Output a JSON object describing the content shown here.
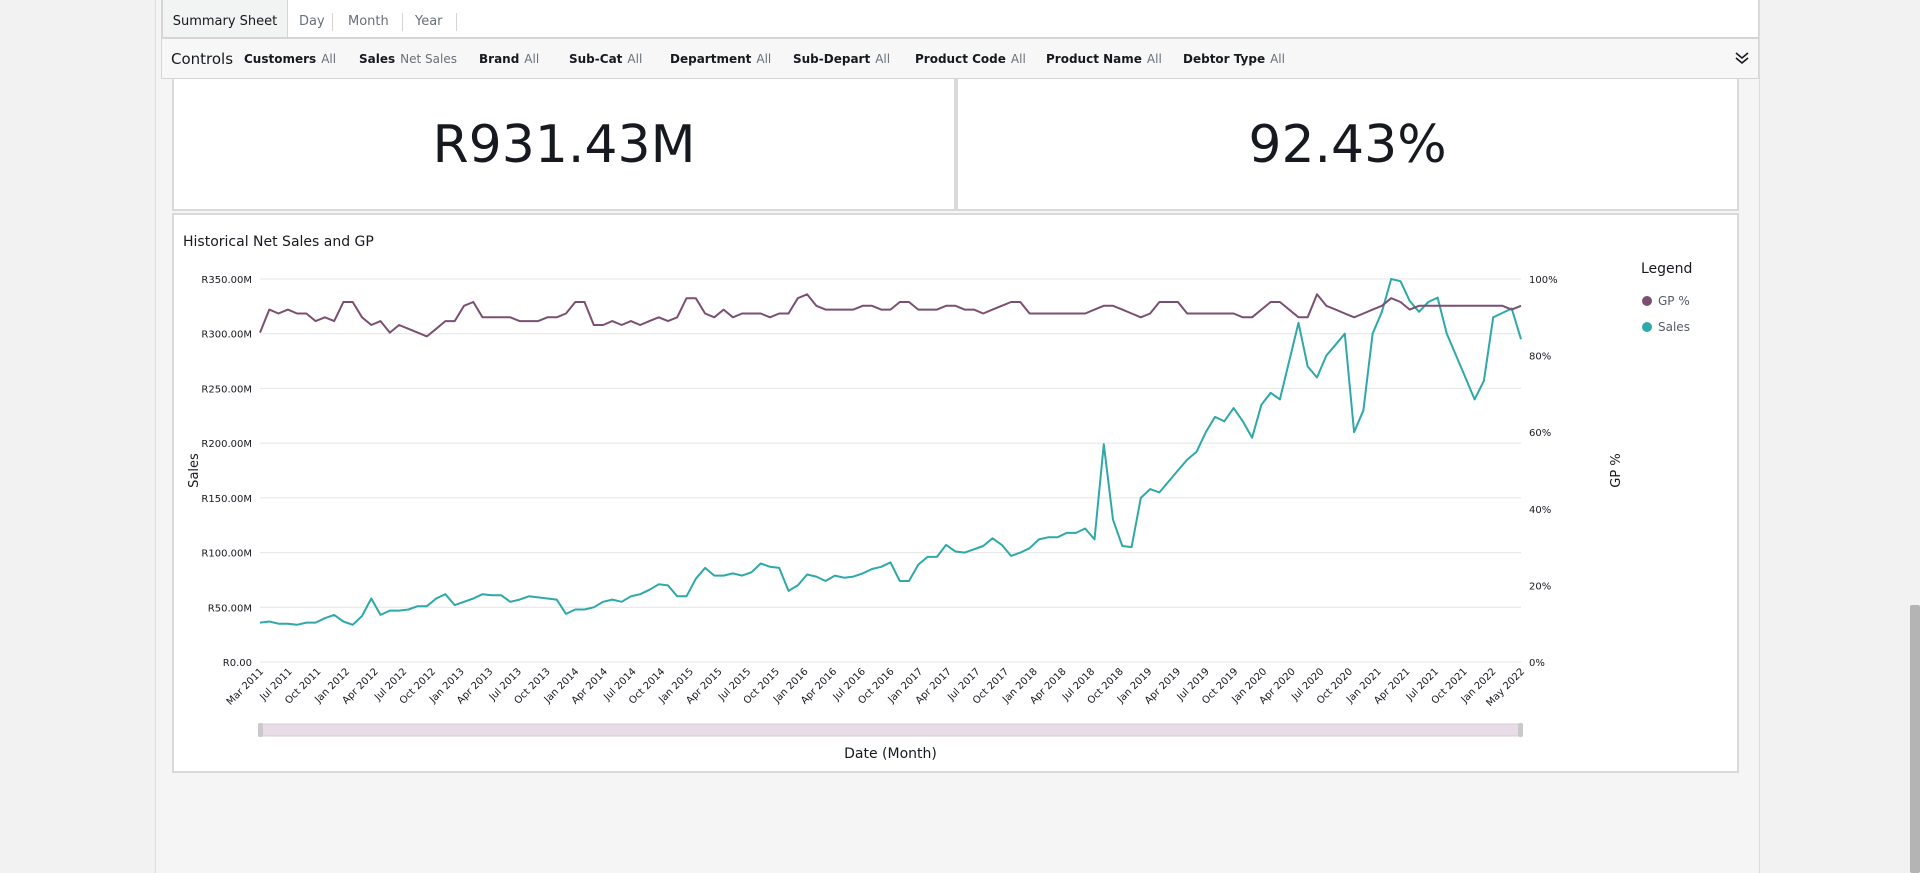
{
  "tabs": [
    {
      "label": "Summary Sheet",
      "active": true
    },
    {
      "label": "Day",
      "active": false
    },
    {
      "label": "Month",
      "active": false
    },
    {
      "label": "Year",
      "active": false
    }
  ],
  "controls": {
    "title": "Controls",
    "filters": [
      {
        "name": "Customers",
        "value": "All"
      },
      {
        "name": "Sales",
        "value": "Net Sales"
      },
      {
        "name": "Brand",
        "value": "All"
      },
      {
        "name": "Sub-Cat",
        "value": "All"
      },
      {
        "name": "Department",
        "value": "All"
      },
      {
        "name": "Sub-Depart",
        "value": "All"
      },
      {
        "name": "Product Code",
        "value": "All"
      },
      {
        "name": "Product Name",
        "value": "All"
      },
      {
        "name": "Debtor Type",
        "value": "All"
      }
    ],
    "collapse_icon": "double-chevron-down-icon"
  },
  "kpis": {
    "net_sales": "R931.43M",
    "gp_percent": "92.43%"
  },
  "colors": {
    "gp_line": "#7b4f72",
    "sales_line": "#2ea8a8",
    "range_slider": "#e8dde6"
  },
  "chart_data": {
    "type": "line",
    "title": "Historical Net Sales and GP",
    "xlabel": "Date (Month)",
    "ylabel": "Sales",
    "y2label": "GP %",
    "ylim": [
      0,
      350
    ],
    "y2lim": [
      0,
      100
    ],
    "y_ticks": [
      "R0.00",
      "R50.00M",
      "R100.00M",
      "R150.00M",
      "R200.00M",
      "R250.00M",
      "R300.00M",
      "R350.00M"
    ],
    "y2_ticks": [
      "0%",
      "20%",
      "40%",
      "60%",
      "80%",
      "100%"
    ],
    "x_tick_labels": [
      "Mar 2011",
      "Jul 2011",
      "Oct 2011",
      "Jan 2012",
      "Apr 2012",
      "Jul 2012",
      "Oct 2012",
      "Jan 2013",
      "Apr 2013",
      "Jul 2013",
      "Oct 2013",
      "Jan 2014",
      "Apr 2014",
      "Jul 2014",
      "Oct 2014",
      "Jan 2015",
      "Apr 2015",
      "Jul 2015",
      "Oct 2015",
      "Jan 2016",
      "Apr 2016",
      "Jul 2016",
      "Oct 2016",
      "Jan 2017",
      "Apr 2017",
      "Jul 2017",
      "Oct 2017",
      "Jan 2018",
      "Apr 2018",
      "Jul 2018",
      "Oct 2018",
      "Jan 2019",
      "Apr 2019",
      "Jul 2019",
      "Oct 2019",
      "Jan 2020",
      "Apr 2020",
      "Jul 2020",
      "Oct 2020",
      "Jan 2021",
      "Apr 2021",
      "Jul 2021",
      "Oct 2021",
      "Jan 2022",
      "May 2022"
    ],
    "legend": {
      "title": "Legend",
      "position": "right",
      "entries": [
        "GP %",
        "Sales"
      ]
    },
    "series": [
      {
        "name": "Sales",
        "axis": "left",
        "unit": "R millions",
        "values": [
          36,
          37,
          35,
          35,
          34,
          36,
          36,
          40,
          43,
          37,
          34,
          42,
          58,
          43,
          47,
          47,
          48,
          51,
          51,
          58,
          62,
          52,
          55,
          58,
          62,
          61,
          61,
          55,
          57,
          60,
          59,
          58,
          57,
          44,
          48,
          48,
          50,
          55,
          57,
          55,
          60,
          62,
          66,
          71,
          70,
          60,
          60,
          76,
          86,
          79,
          79,
          81,
          79,
          82,
          90,
          87,
          86,
          65,
          70,
          80,
          78,
          74,
          79,
          77,
          78,
          81,
          85,
          87,
          91,
          74,
          74,
          89,
          96,
          96,
          107,
          101,
          100,
          103,
          106,
          113,
          107,
          97,
          100,
          104,
          112,
          114,
          114,
          118,
          118,
          122,
          112,
          199,
          130,
          106,
          105,
          150,
          158,
          155,
          165,
          175,
          185,
          192,
          210,
          224,
          220,
          232,
          220,
          205,
          235,
          246,
          240,
          275,
          310,
          270,
          260,
          280,
          290,
          300,
          210,
          230,
          300,
          320,
          350,
          348,
          330,
          320,
          329,
          333,
          300,
          280,
          260,
          240,
          257,
          315,
          319,
          323,
          295
        ]
      },
      {
        "name": "GP %",
        "axis": "right",
        "unit": "percent",
        "values": [
          86,
          92,
          91,
          92,
          91,
          91,
          89,
          90,
          89,
          94,
          94,
          90,
          88,
          89,
          86,
          88,
          87,
          86,
          85,
          87,
          89,
          89,
          93,
          94,
          90,
          90,
          90,
          90,
          89,
          89,
          89,
          90,
          90,
          91,
          94,
          94,
          88,
          88,
          89,
          88,
          89,
          88,
          89,
          90,
          89,
          90,
          95,
          95,
          91,
          90,
          92,
          90,
          91,
          91,
          91,
          90,
          91,
          91,
          95,
          96,
          93,
          92,
          92,
          92,
          92,
          93,
          93,
          92,
          92,
          94,
          94,
          92,
          92,
          92,
          93,
          93,
          92,
          92,
          91,
          92,
          93,
          94,
          94,
          91,
          91,
          91,
          91,
          91,
          91,
          91,
          92,
          93,
          93,
          92,
          91,
          90,
          91,
          94,
          94,
          94,
          91,
          91,
          91,
          91,
          91,
          91,
          90,
          90,
          92,
          94,
          94,
          92,
          90,
          90,
          96,
          93,
          92,
          91,
          90,
          91,
          92,
          93,
          95,
          94,
          92,
          93,
          93,
          93,
          93,
          93,
          93,
          93,
          93,
          93,
          93,
          92,
          93
        ]
      }
    ]
  }
}
